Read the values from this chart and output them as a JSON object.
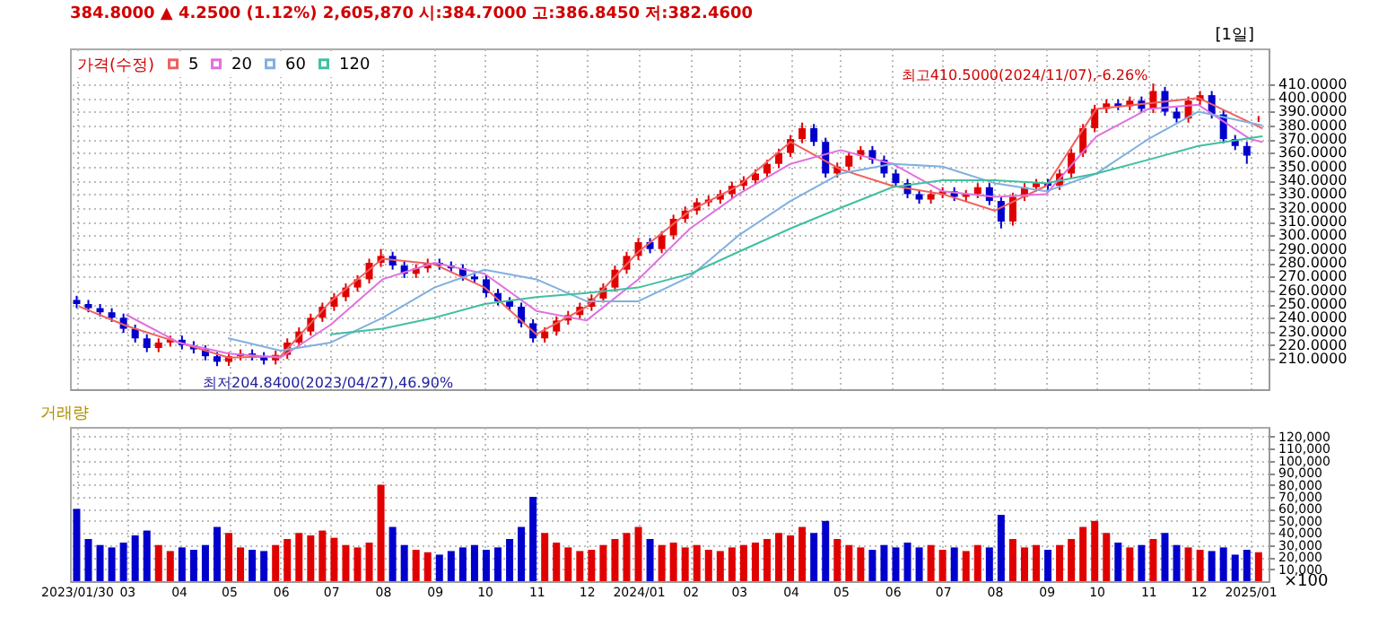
{
  "chart_data": [
    {
      "type": "candlestick",
      "title": "384.8000 ▲ 4.2500 (1.12%) 2,605,870 시:384.7000 고:386.8450 저:382.4600",
      "legend_title": "가격(수정)",
      "legend": "top left",
      "grid": true,
      "tick_labels": "y",
      "xlim": [
        "2023-01-26",
        "2025-01-12"
      ],
      "ylim": [
        188,
        436
      ],
      "xticks": [
        {
          "value": "2023-01-30",
          "label": null
        },
        {
          "value": "2023-03-01",
          "label": null
        },
        {
          "value": "2023-04-01",
          "label": null
        },
        {
          "value": "2023-05-01",
          "label": null
        },
        {
          "value": "2023-06-01",
          "label": null
        },
        {
          "value": "2023-07-01",
          "label": null
        },
        {
          "value": "2023-08-01",
          "label": null
        },
        {
          "value": "2023-09-01",
          "label": null
        },
        {
          "value": "2023-10-01",
          "label": null
        },
        {
          "value": "2023-11-01",
          "label": null
        },
        {
          "value": "2023-12-01",
          "label": null
        },
        {
          "value": "2024-01-01",
          "label": null
        },
        {
          "value": "2024-02-01",
          "label": null
        },
        {
          "value": "2024-03-01",
          "label": null
        },
        {
          "value": "2024-04-01",
          "label": null
        },
        {
          "value": "2024-05-01",
          "label": null
        },
        {
          "value": "2024-06-01",
          "label": null
        },
        {
          "value": "2024-07-01",
          "label": null
        },
        {
          "value": "2024-08-01",
          "label": null
        },
        {
          "value": "2024-09-01",
          "label": null
        },
        {
          "value": "2024-10-01",
          "label": null
        },
        {
          "value": "2024-11-01",
          "label": null
        },
        {
          "value": "2024-12-01",
          "label": null
        },
        {
          "value": "2025-01-01",
          "label": null
        }
      ],
      "yticks": [
        {
          "value": 210,
          "label": "210.0000"
        },
        {
          "value": 220,
          "label": "220.0000"
        },
        {
          "value": 230,
          "label": "230.0000"
        },
        {
          "value": 240,
          "label": "240.0000"
        },
        {
          "value": 250,
          "label": "250.0000"
        },
        {
          "value": 260,
          "label": "260.0000"
        },
        {
          "value": 270,
          "label": "270.0000"
        },
        {
          "value": 280,
          "label": "280.0000"
        },
        {
          "value": 290,
          "label": "290.0000"
        },
        {
          "value": 300,
          "label": "300.0000"
        },
        {
          "value": 310,
          "label": "310.0000"
        },
        {
          "value": 320,
          "label": "320.0000"
        },
        {
          "value": 330,
          "label": "330.0000"
        },
        {
          "value": 340,
          "label": "340.0000"
        },
        {
          "value": 350,
          "label": "350.0000"
        },
        {
          "value": 360,
          "label": "360.0000"
        },
        {
          "value": 370,
          "label": "370.0000"
        },
        {
          "value": 380,
          "label": "380.0000"
        },
        {
          "value": 390,
          "label": "390.0000"
        },
        {
          "value": 400,
          "label": "400.0000"
        },
        {
          "value": 410,
          "label": "410.0000"
        }
      ],
      "annotations": [
        "[1일]",
        {
          "text": "최고410.5000(2024/11/07),-6.26%",
          "x": "2024-11-04",
          "y": 410.5
        },
        {
          "text": "최저204.8400(2023/04/27),46.90%",
          "x": "2023-04-24",
          "y": 204.84
        }
      ],
      "x": [
        "2023-01-30",
        "2023-02-06",
        "2023-02-13",
        "2023-02-20",
        "2023-02-27",
        "2023-03-06",
        "2023-03-13",
        "2023-03-20",
        "2023-03-27",
        "2023-04-03",
        "2023-04-10",
        "2023-04-17",
        "2023-04-24",
        "2023-05-01",
        "2023-05-08",
        "2023-05-15",
        "2023-05-22",
        "2023-05-29",
        "2023-06-05",
        "2023-06-12",
        "2023-06-19",
        "2023-06-26",
        "2023-07-03",
        "2023-07-10",
        "2023-07-17",
        "2023-07-24",
        "2023-07-31",
        "2023-08-07",
        "2023-08-14",
        "2023-08-21",
        "2023-08-28",
        "2023-09-04",
        "2023-09-11",
        "2023-09-18",
        "2023-09-25",
        "2023-10-02",
        "2023-10-09",
        "2023-10-16",
        "2023-10-23",
        "2023-10-30",
        "2023-11-06",
        "2023-11-13",
        "2023-11-20",
        "2023-11-27",
        "2023-12-04",
        "2023-12-11",
        "2023-12-18",
        "2023-12-25",
        "2024-01-01",
        "2024-01-08",
        "2024-01-15",
        "2024-01-22",
        "2024-01-29",
        "2024-02-05",
        "2024-02-12",
        "2024-02-19",
        "2024-02-26",
        "2024-03-04",
        "2024-03-11",
        "2024-03-18",
        "2024-03-25",
        "2024-04-01",
        "2024-04-08",
        "2024-04-15",
        "2024-04-22",
        "2024-04-29",
        "2024-05-06",
        "2024-05-13",
        "2024-05-20",
        "2024-05-27",
        "2024-06-03",
        "2024-06-10",
        "2024-06-17",
        "2024-06-24",
        "2024-07-01",
        "2024-07-08",
        "2024-07-15",
        "2024-07-22",
        "2024-07-29",
        "2024-08-05",
        "2024-08-12",
        "2024-08-19",
        "2024-08-26",
        "2024-09-02",
        "2024-09-09",
        "2024-09-16",
        "2024-09-23",
        "2024-09-30",
        "2024-10-07",
        "2024-10-14",
        "2024-10-21",
        "2024-10-28",
        "2024-11-04",
        "2024-11-11",
        "2024-11-18",
        "2024-11-25",
        "2024-12-02",
        "2024-12-09",
        "2024-12-16",
        "2024-12-23",
        "2024-12-30",
        "2025-01-06"
      ],
      "ohlc": [
        [
          253,
          256,
          247,
          250
        ],
        [
          250,
          253,
          244,
          247
        ],
        [
          247,
          250,
          241,
          244
        ],
        [
          244,
          247,
          237,
          240
        ],
        [
          240,
          243,
          229,
          232
        ],
        [
          232,
          235,
          222,
          225
        ],
        [
          225,
          228,
          215,
          218
        ],
        [
          218,
          225,
          215,
          222
        ],
        [
          222,
          227,
          219,
          224
        ],
        [
          224,
          227,
          217,
          220
        ],
        [
          220,
          223,
          214,
          217
        ],
        [
          217,
          220,
          209,
          212
        ],
        [
          212,
          215,
          204.84,
          208
        ],
        [
          208,
          215,
          205,
          212
        ],
        [
          212,
          217,
          209,
          214
        ],
        [
          214,
          217,
          209,
          212
        ],
        [
          212,
          215,
          206,
          209
        ],
        [
          209,
          216,
          206,
          213
        ],
        [
          213,
          225,
          210,
          222
        ],
        [
          222,
          233,
          219,
          230
        ],
        [
          230,
          243,
          227,
          240
        ],
        [
          240,
          251,
          237,
          248
        ],
        [
          248,
          258,
          245,
          255
        ],
        [
          255,
          265,
          252,
          262
        ],
        [
          262,
          271,
          259,
          268
        ],
        [
          268,
          283,
          265,
          280
        ],
        [
          280,
          290,
          277,
          285
        ],
        [
          285,
          288,
          275,
          278
        ],
        [
          278,
          281,
          269,
          272
        ],
        [
          272,
          279,
          269,
          276
        ],
        [
          276,
          283,
          273,
          280
        ],
        [
          280,
          283,
          275,
          278
        ],
        [
          278,
          281,
          273,
          276
        ],
        [
          276,
          279,
          267,
          270
        ],
        [
          270,
          273,
          265,
          268
        ],
        [
          268,
          271,
          255,
          258
        ],
        [
          258,
          261,
          249,
          252
        ],
        [
          252,
          255,
          245,
          248
        ],
        [
          248,
          251,
          233,
          236
        ],
        [
          236,
          239,
          222,
          225
        ],
        [
          225,
          233,
          222,
          230
        ],
        [
          230,
          241,
          227,
          238
        ],
        [
          238,
          245,
          235,
          242
        ],
        [
          242,
          251,
          239,
          248
        ],
        [
          248,
          257,
          245,
          254
        ],
        [
          254,
          265,
          251,
          262
        ],
        [
          262,
          278,
          259,
          275
        ],
        [
          275,
          288,
          272,
          285
        ],
        [
          285,
          298,
          282,
          295
        ],
        [
          295,
          298,
          287,
          290
        ],
        [
          290,
          303,
          287,
          300
        ],
        [
          300,
          315,
          297,
          312
        ],
        [
          312,
          321,
          309,
          318
        ],
        [
          318,
          327,
          315,
          324
        ],
        [
          324,
          329,
          321,
          326
        ],
        [
          326,
          333,
          323,
          330
        ],
        [
          330,
          339,
          327,
          336
        ],
        [
          336,
          343,
          333,
          340
        ],
        [
          340,
          348,
          337,
          345
        ],
        [
          345,
          355,
          342,
          352
        ],
        [
          352,
          363,
          349,
          360
        ],
        [
          360,
          373,
          357,
          370
        ],
        [
          370,
          382,
          367,
          378
        ],
        [
          378,
          381,
          365,
          368
        ],
        [
          368,
          371,
          342,
          345
        ],
        [
          345,
          353,
          342,
          350
        ],
        [
          350,
          361,
          347,
          358
        ],
        [
          358,
          365,
          355,
          362
        ],
        [
          362,
          365,
          352,
          355
        ],
        [
          355,
          358,
          342,
          345
        ],
        [
          345,
          348,
          335,
          338
        ],
        [
          338,
          341,
          327,
          330
        ],
        [
          330,
          333,
          323,
          326
        ],
        [
          326,
          333,
          323,
          330
        ],
        [
          330,
          335,
          327,
          332
        ],
        [
          332,
          335,
          325,
          328
        ],
        [
          328,
          333,
          325,
          330
        ],
        [
          330,
          338,
          327,
          335
        ],
        [
          335,
          338,
          322,
          325
        ],
        [
          325,
          328,
          305,
          310
        ],
        [
          310,
          331,
          307,
          328
        ],
        [
          328,
          338,
          325,
          335
        ],
        [
          335,
          341,
          332,
          338
        ],
        [
          338,
          341,
          333,
          336
        ],
        [
          336,
          348,
          333,
          345
        ],
        [
          345,
          363,
          342,
          360
        ],
        [
          360,
          381,
          357,
          378
        ],
        [
          378,
          395,
          375,
          392
        ],
        [
          392,
          399,
          389,
          396
        ],
        [
          396,
          399,
          391,
          394
        ],
        [
          394,
          401,
          391,
          398
        ],
        [
          398,
          401,
          389,
          392
        ],
        [
          392,
          410.5,
          389,
          405
        ],
        [
          405,
          408,
          387,
          390
        ],
        [
          390,
          393,
          382,
          385
        ],
        [
          385,
          401,
          382,
          398
        ],
        [
          398,
          405,
          395,
          402
        ],
        [
          402,
          405,
          385,
          388
        ],
        [
          388,
          391,
          367,
          370
        ],
        [
          370,
          373,
          362,
          365
        ],
        [
          365,
          368,
          352,
          358
        ],
        [
          384.7,
          386.845,
          382.46,
          384.8
        ]
      ],
      "colors": [
        "#0000cc",
        "#0000cc",
        "#0000cc",
        "#0000cc",
        "#0000cc",
        "#0000cc",
        "#0000cc",
        "#e00000",
        "#e00000",
        "#0000cc",
        "#0000cc",
        "#0000cc",
        "#0000cc",
        "#e00000",
        "#e00000",
        "#0000cc",
        "#0000cc",
        "#e00000",
        "#e00000",
        "#e00000",
        "#e00000",
        "#e00000",
        "#e00000",
        "#e00000",
        "#e00000",
        "#e00000",
        "#e00000",
        "#0000cc",
        "#0000cc",
        "#e00000",
        "#e00000",
        "#0000cc",
        "#0000cc",
        "#0000cc",
        "#0000cc",
        "#0000cc",
        "#0000cc",
        "#0000cc",
        "#0000cc",
        "#0000cc",
        "#e00000",
        "#e00000",
        "#e00000",
        "#e00000",
        "#e00000",
        "#e00000",
        "#e00000",
        "#e00000",
        "#e00000",
        "#0000cc",
        "#e00000",
        "#e00000",
        "#e00000",
        "#e00000",
        "#e00000",
        "#e00000",
        "#e00000",
        "#e00000",
        "#e00000",
        "#e00000",
        "#e00000",
        "#e00000",
        "#e00000",
        "#0000cc",
        "#0000cc",
        "#e00000",
        "#e00000",
        "#e00000",
        "#0000cc",
        "#0000cc",
        "#0000cc",
        "#0000cc",
        "#0000cc",
        "#e00000",
        "#e00000",
        "#0000cc",
        "#e00000",
        "#e00000",
        "#0000cc",
        "#0000cc",
        "#e00000",
        "#e00000",
        "#e00000",
        "#0000cc",
        "#e00000",
        "#e00000",
        "#e00000",
        "#e00000",
        "#e00000",
        "#0000cc",
        "#e00000",
        "#0000cc",
        "#e00000",
        "#0000cc",
        "#0000cc",
        "#e00000",
        "#e00000",
        "#0000cc",
        "#0000cc",
        "#0000cc",
        "#0000cc",
        "#e00000"
      ],
      "series": [
        {
          "name": "5",
          "type": "line",
          "color": "#f06060",
          "x": [
            "2023-02-01",
            "2023-03-01",
            "2023-04-01",
            "2023-05-01",
            "2023-06-01",
            "2023-07-01",
            "2023-08-01",
            "2023-09-01",
            "2023-10-01",
            "2023-11-01",
            "2023-12-01",
            "2024-01-01",
            "2024-02-01",
            "2024-03-01",
            "2024-04-01",
            "2024-05-01",
            "2024-06-01",
            "2024-07-01",
            "2024-08-01",
            "2024-09-01",
            "2024-10-01",
            "2024-11-01",
            "2024-12-01",
            "2025-01-08"
          ],
          "values": [
            248,
            234,
            222,
            211,
            212,
            252,
            283,
            279,
            262,
            228,
            248,
            288,
            318,
            336,
            368,
            348,
            336,
            330,
            318,
            336,
            392,
            396,
            400,
            378
          ]
        },
        {
          "name": "20",
          "type": "line",
          "color": "#e070e0",
          "x": [
            "2023-03-01",
            "2023-04-01",
            "2023-05-01",
            "2023-06-01",
            "2023-07-01",
            "2023-08-01",
            "2023-09-01",
            "2023-10-01",
            "2023-11-01",
            "2023-12-01",
            "2024-01-01",
            "2024-02-01",
            "2024-03-01",
            "2024-04-01",
            "2024-05-01",
            "2024-06-01",
            "2024-07-01",
            "2024-08-01",
            "2024-09-01",
            "2024-10-01",
            "2024-11-01",
            "2024-12-01",
            "2025-01-01",
            "2025-01-08"
          ],
          "values": [
            242,
            222,
            214,
            211,
            235,
            268,
            280,
            272,
            245,
            238,
            268,
            305,
            330,
            352,
            362,
            352,
            332,
            328,
            330,
            372,
            392,
            395,
            370,
            368
          ]
        },
        {
          "name": "60",
          "type": "line",
          "color": "#80b0e0",
          "x": [
            "2023-05-01",
            "2023-06-01",
            "2023-07-01",
            "2023-08-01",
            "2023-09-01",
            "2023-10-01",
            "2023-11-01",
            "2023-12-01",
            "2024-01-01",
            "2024-02-01",
            "2024-03-01",
            "2024-04-01",
            "2024-05-01",
            "2024-06-01",
            "2024-07-01",
            "2024-08-01",
            "2024-09-01",
            "2024-10-01",
            "2024-11-01",
            "2024-12-01",
            "2025-01-08"
          ],
          "values": [
            225,
            216,
            222,
            240,
            262,
            275,
            268,
            252,
            252,
            270,
            300,
            325,
            345,
            352,
            350,
            338,
            332,
            345,
            370,
            390,
            380
          ]
        },
        {
          "name": "120",
          "type": "line",
          "color": "#40c0a0",
          "x": [
            "2023-07-01",
            "2023-08-01",
            "2023-09-01",
            "2023-10-01",
            "2023-11-01",
            "2023-12-01",
            "2024-01-01",
            "2024-02-01",
            "2024-03-01",
            "2024-04-01",
            "2024-05-01",
            "2024-06-01",
            "2024-07-01",
            "2024-08-01",
            "2024-09-01",
            "2024-10-01",
            "2024-11-01",
            "2024-12-01",
            "2025-01-08"
          ],
          "values": [
            228,
            232,
            240,
            250,
            255,
            258,
            262,
            272,
            288,
            305,
            320,
            335,
            340,
            340,
            338,
            345,
            355,
            365,
            372
          ]
        }
      ]
    },
    {
      "type": "bar",
      "title": "거래량",
      "ylabel": "×100",
      "grid": true,
      "xlim": [
        "2023-01-26",
        "2025-01-12"
      ],
      "ylim": [
        0,
        128000
      ],
      "xticks": [
        {
          "value": "2023-01-30",
          "label": "2023/01/30"
        },
        {
          "value": "2023-03-01",
          "label": "03"
        },
        {
          "value": "2023-04-01",
          "label": "04"
        },
        {
          "value": "2023-05-01",
          "label": "05"
        },
        {
          "value": "2023-06-01",
          "label": "06"
        },
        {
          "value": "2023-07-01",
          "label": "07"
        },
        {
          "value": "2023-08-01",
          "label": "08"
        },
        {
          "value": "2023-09-01",
          "label": "09"
        },
        {
          "value": "2023-10-01",
          "label": "10"
        },
        {
          "value": "2023-11-01",
          "label": "11"
        },
        {
          "value": "2023-12-01",
          "label": "12"
        },
        {
          "value": "2024-01-01",
          "label": "2024/01"
        },
        {
          "value": "2024-02-01",
          "label": "02"
        },
        {
          "value": "2024-03-01",
          "label": "03"
        },
        {
          "value": "2024-04-01",
          "label": "04"
        },
        {
          "value": "2024-05-01",
          "label": "05"
        },
        {
          "value": "2024-06-01",
          "label": "06"
        },
        {
          "value": "2024-07-01",
          "label": "07"
        },
        {
          "value": "2024-08-01",
          "label": "08"
        },
        {
          "value": "2024-09-01",
          "label": "09"
        },
        {
          "value": "2024-10-01",
          "label": "10"
        },
        {
          "value": "2024-11-01",
          "label": "11"
        },
        {
          "value": "2024-12-01",
          "label": "12"
        },
        {
          "value": "2025-01-01",
          "label": "2025/01"
        }
      ],
      "yticks": [
        {
          "value": 10000,
          "label": "10,000"
        },
        {
          "value": 20000,
          "label": "20,000"
        },
        {
          "value": 30000,
          "label": "30,000"
        },
        {
          "value": 40000,
          "label": "40,000"
        },
        {
          "value": 50000,
          "label": "50,000"
        },
        {
          "value": 60000,
          "label": "60,000"
        },
        {
          "value": 70000,
          "label": "70,000"
        },
        {
          "value": 80000,
          "label": "80,000"
        },
        {
          "value": 90000,
          "label": "90,000"
        },
        {
          "value": 100000,
          "label": "100,000"
        },
        {
          "value": 110000,
          "label": "110,000"
        },
        {
          "value": 120000,
          "label": "120,000"
        }
      ],
      "x": [
        "2023-01-30",
        "2023-02-06",
        "2023-02-13",
        "2023-02-20",
        "2023-02-27",
        "2023-03-06",
        "2023-03-13",
        "2023-03-20",
        "2023-03-27",
        "2023-04-03",
        "2023-04-10",
        "2023-04-17",
        "2023-04-24",
        "2023-05-01",
        "2023-05-08",
        "2023-05-15",
        "2023-05-22",
        "2023-05-29",
        "2023-06-05",
        "2023-06-12",
        "2023-06-19",
        "2023-06-26",
        "2023-07-03",
        "2023-07-10",
        "2023-07-17",
        "2023-07-24",
        "2023-07-31",
        "2023-08-07",
        "2023-08-14",
        "2023-08-21",
        "2023-08-28",
        "2023-09-04",
        "2023-09-11",
        "2023-09-18",
        "2023-09-25",
        "2023-10-02",
        "2023-10-09",
        "2023-10-16",
        "2023-10-23",
        "2023-10-30",
        "2023-11-06",
        "2023-11-13",
        "2023-11-20",
        "2023-11-27",
        "2023-12-04",
        "2023-12-11",
        "2023-12-18",
        "2023-12-25",
        "2024-01-01",
        "2024-01-08",
        "2024-01-15",
        "2024-01-22",
        "2024-01-29",
        "2024-02-05",
        "2024-02-12",
        "2024-02-19",
        "2024-02-26",
        "2024-03-04",
        "2024-03-11",
        "2024-03-18",
        "2024-03-25",
        "2024-04-01",
        "2024-04-08",
        "2024-04-15",
        "2024-04-22",
        "2024-04-29",
        "2024-05-06",
        "2024-05-13",
        "2024-05-20",
        "2024-05-27",
        "2024-06-03",
        "2024-06-10",
        "2024-06-17",
        "2024-06-24",
        "2024-07-01",
        "2024-07-08",
        "2024-07-15",
        "2024-07-22",
        "2024-07-29",
        "2024-08-05",
        "2024-08-12",
        "2024-08-19",
        "2024-08-26",
        "2024-09-02",
        "2024-09-09",
        "2024-09-16",
        "2024-09-23",
        "2024-09-30",
        "2024-10-07",
        "2024-10-14",
        "2024-10-21",
        "2024-10-28",
        "2024-11-04",
        "2024-11-11",
        "2024-11-18",
        "2024-11-25",
        "2024-12-02",
        "2024-12-09",
        "2024-12-16",
        "2024-12-23",
        "2024-12-30",
        "2025-01-06"
      ],
      "values": [
        60000,
        35000,
        30000,
        28000,
        32000,
        38000,
        42000,
        30000,
        25000,
        28000,
        26000,
        30000,
        45000,
        40000,
        28000,
        26000,
        25000,
        30000,
        35000,
        40000,
        38000,
        42000,
        36000,
        30000,
        28000,
        32000,
        80000,
        45000,
        30000,
        26000,
        24000,
        22000,
        25000,
        28000,
        30000,
        26000,
        28000,
        35000,
        45000,
        70000,
        40000,
        32000,
        28000,
        25000,
        26000,
        30000,
        35000,
        40000,
        45000,
        35000,
        30000,
        32000,
        28000,
        30000,
        26000,
        25000,
        28000,
        30000,
        32000,
        35000,
        40000,
        38000,
        45000,
        40000,
        50000,
        35000,
        30000,
        28000,
        26000,
        30000,
        28000,
        32000,
        28000,
        30000,
        26000,
        28000,
        25000,
        30000,
        28000,
        55000,
        35000,
        28000,
        30000,
        26000,
        30000,
        35000,
        45000,
        50000,
        40000,
        32000,
        28000,
        30000,
        35000,
        40000,
        30000,
        28000,
        26000,
        25000,
        28000,
        22000,
        26000,
        24000
      ],
      "colors": [
        "#0000cc",
        "#0000cc",
        "#0000cc",
        "#0000cc",
        "#0000cc",
        "#0000cc",
        "#0000cc",
        "#e00000",
        "#e00000",
        "#0000cc",
        "#0000cc",
        "#0000cc",
        "#0000cc",
        "#e00000",
        "#e00000",
        "#0000cc",
        "#0000cc",
        "#e00000",
        "#e00000",
        "#e00000",
        "#e00000",
        "#e00000",
        "#e00000",
        "#e00000",
        "#e00000",
        "#e00000",
        "#e00000",
        "#0000cc",
        "#0000cc",
        "#e00000",
        "#e00000",
        "#0000cc",
        "#0000cc",
        "#0000cc",
        "#0000cc",
        "#0000cc",
        "#0000cc",
        "#0000cc",
        "#0000cc",
        "#0000cc",
        "#e00000",
        "#e00000",
        "#e00000",
        "#e00000",
        "#e00000",
        "#e00000",
        "#e00000",
        "#e00000",
        "#e00000",
        "#0000cc",
        "#e00000",
        "#e00000",
        "#e00000",
        "#e00000",
        "#e00000",
        "#e00000",
        "#e00000",
        "#e00000",
        "#e00000",
        "#e00000",
        "#e00000",
        "#e00000",
        "#e00000",
        "#0000cc",
        "#0000cc",
        "#e00000",
        "#e00000",
        "#e00000",
        "#0000cc",
        "#0000cc",
        "#0000cc",
        "#0000cc",
        "#0000cc",
        "#e00000",
        "#e00000",
        "#0000cc",
        "#e00000",
        "#e00000",
        "#0000cc",
        "#0000cc",
        "#e00000",
        "#e00000",
        "#e00000",
        "#0000cc",
        "#e00000",
        "#e00000",
        "#e00000",
        "#e00000",
        "#e00000",
        "#0000cc",
        "#e00000",
        "#0000cc",
        "#e00000",
        "#0000cc",
        "#0000cc",
        "#e00000",
        "#e00000",
        "#0000cc",
        "#0000cc",
        "#0000cc",
        "#0000cc",
        "#e00000"
      ]
    }
  ]
}
